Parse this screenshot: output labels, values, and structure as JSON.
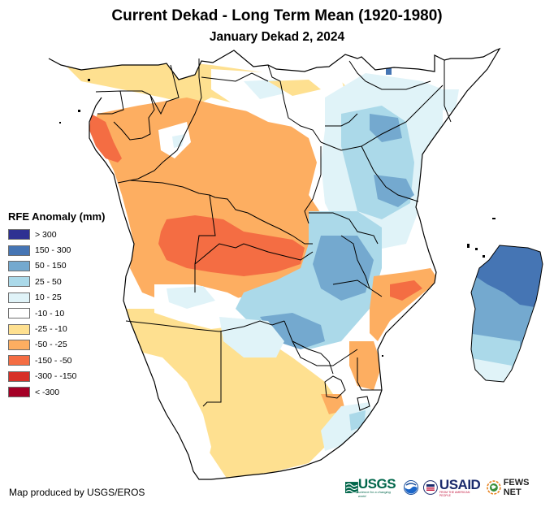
{
  "header": {
    "title": "Current Dekad - Long Term Mean (1920-1980)",
    "subtitle": "January Dekad 2, 2024"
  },
  "legend": {
    "title": "RFE Anomaly (mm)",
    "items": [
      {
        "label": "> 300",
        "color": "#2e3192"
      },
      {
        "label": "150 - 300",
        "color": "#4575b4"
      },
      {
        "label": "50 - 150",
        "color": "#74a9cf"
      },
      {
        "label": "25 - 50",
        "color": "#abd9e9"
      },
      {
        "label": "10 - 25",
        "color": "#e0f3f8"
      },
      {
        "label": "-10 - 10",
        "color": "#ffffff"
      },
      {
        "label": "-25 - -10",
        "color": "#fee090"
      },
      {
        "label": "-50 - -25",
        "color": "#fdae61"
      },
      {
        "label": "-150 - -50",
        "color": "#f46d43"
      },
      {
        "label": "-300 - -150",
        "color": "#d73027"
      },
      {
        "label": "< -300",
        "color": "#a50026"
      }
    ]
  },
  "footer": {
    "credit": "Map produced by USGS/EROS",
    "logos": {
      "usgs": "USGS",
      "usgs_tagline": "science for a changing world",
      "noaa": "NOAA",
      "usaid": "USAID",
      "usaid_tagline": "FROM THE AMERICAN PEOPLE",
      "fews": "FEWS NET"
    }
  },
  "map": {
    "region": "Southern and Eastern Africa",
    "variable": "Rainfall estimate anomaly",
    "colors": {
      "border": "#000000",
      "ocean": "#ffffff"
    }
  }
}
